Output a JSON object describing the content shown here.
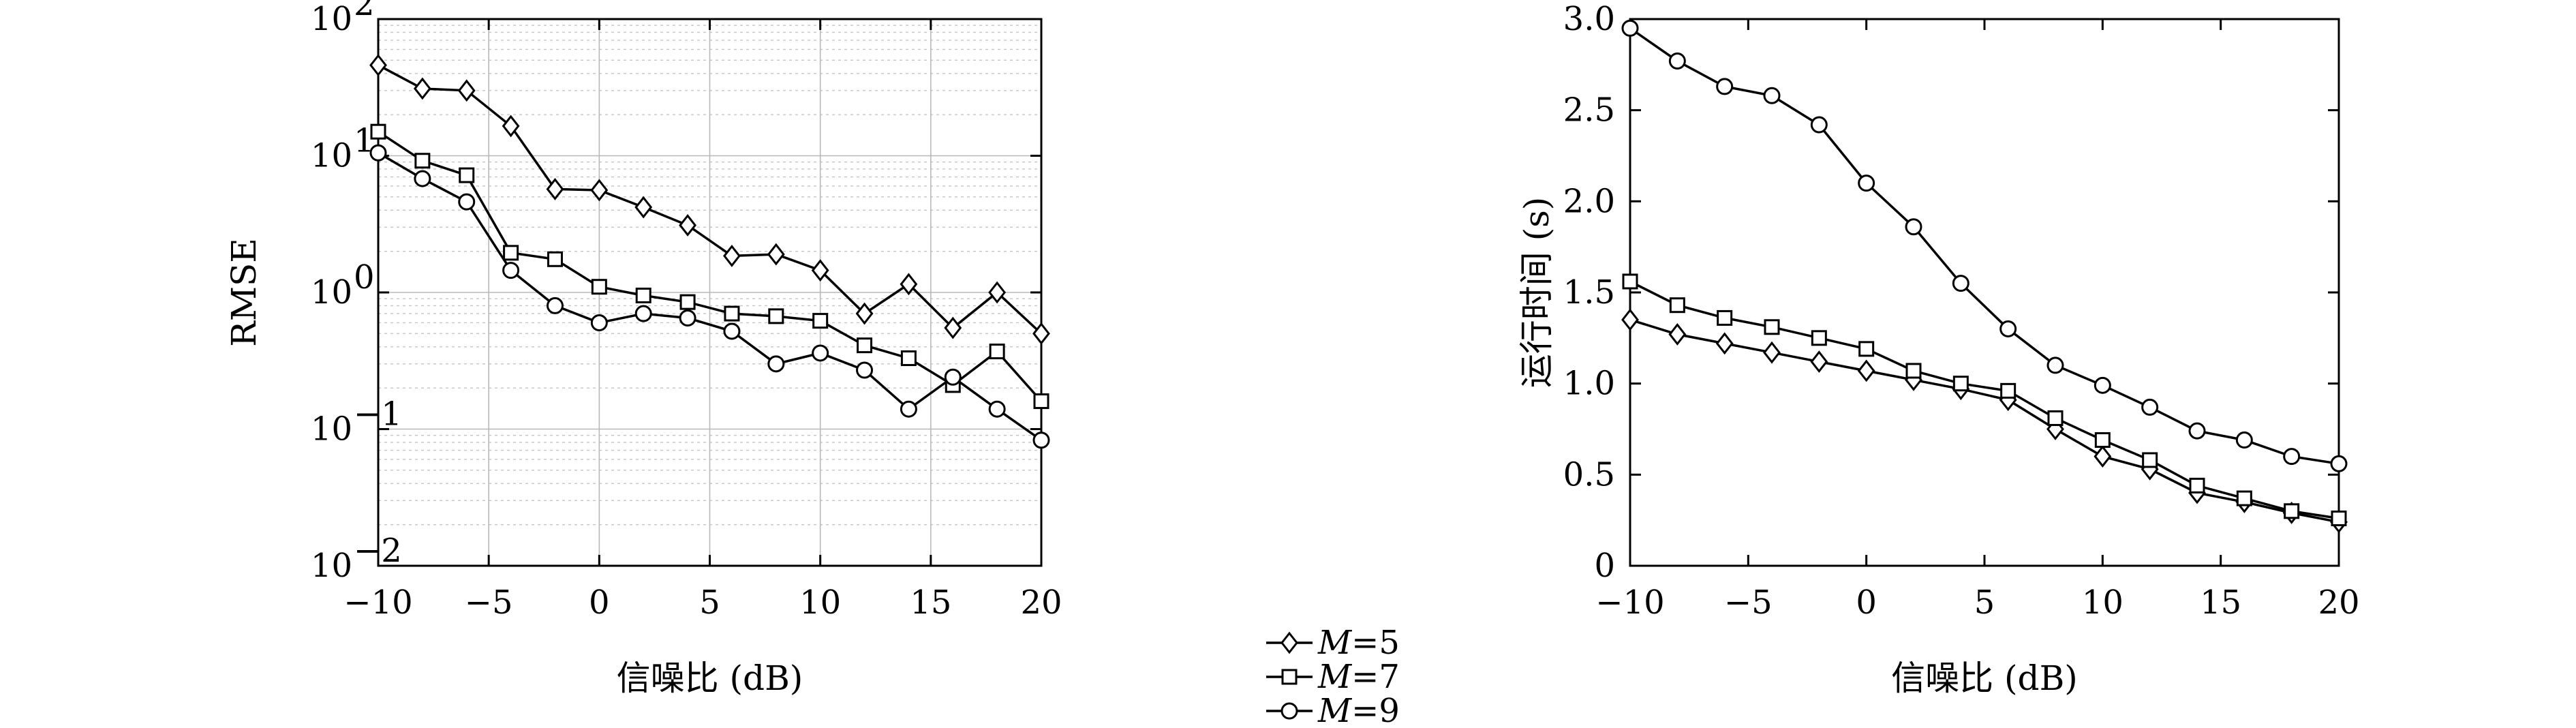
{
  "chart_data": [
    {
      "type": "line",
      "xlabel": "信噪比 (dB)",
      "ylabel": "RMSE",
      "yscale": "log",
      "xlim": [
        -10,
        20
      ],
      "ylim": [
        0.01,
        100
      ],
      "grid": true,
      "x": [
        -10,
        -8,
        -6,
        -4,
        -2,
        0,
        2,
        4,
        6,
        8,
        10,
        12,
        14,
        16,
        18,
        20
      ],
      "x_ticks": [
        -10,
        -5,
        0,
        5,
        10,
        15,
        20
      ],
      "x_tick_labels": [
        "−10",
        "−5",
        "0",
        "5",
        "10",
        "15",
        "20"
      ],
      "y_ticks": [
        {
          "value": 0.01,
          "base": "10",
          "exp": "−2"
        },
        {
          "value": 0.1,
          "base": "10",
          "exp": "−1"
        },
        {
          "value": 1,
          "base": "10",
          "exp": "0"
        },
        {
          "value": 10,
          "base": "10",
          "exp": "1"
        },
        {
          "value": 100,
          "base": "10",
          "exp": "2"
        }
      ],
      "series": [
        {
          "name": "M=5",
          "marker": "diamond",
          "values": [
            46,
            31,
            30,
            16.5,
            5.7,
            5.6,
            4.2,
            3.1,
            1.85,
            1.9,
            1.45,
            0.7,
            1.15,
            0.55,
            1.0,
            0.5
          ]
        },
        {
          "name": "M=7",
          "marker": "square",
          "values": [
            15,
            9.2,
            7.2,
            1.95,
            1.75,
            1.1,
            0.95,
            0.85,
            0.7,
            0.67,
            0.62,
            0.41,
            0.33,
            0.21,
            0.37,
            0.16
          ]
        },
        {
          "name": "M=9",
          "marker": "circle",
          "values": [
            10.5,
            6.8,
            4.6,
            1.45,
            0.8,
            0.6,
            0.7,
            0.65,
            0.52,
            0.3,
            0.36,
            0.27,
            0.14,
            0.24,
            0.14,
            0.083
          ]
        }
      ]
    },
    {
      "type": "line",
      "xlabel": "信噪比 (dB)",
      "ylabel": "运行时间 (s)",
      "yscale": "linear",
      "xlim": [
        -10,
        20
      ],
      "ylim": [
        0,
        3.0
      ],
      "grid": false,
      "x": [
        -10,
        -8,
        -6,
        -4,
        -2,
        0,
        2,
        4,
        6,
        8,
        10,
        12,
        14,
        16,
        18,
        20
      ],
      "x_ticks": [
        -10,
        -5,
        0,
        5,
        10,
        15,
        20
      ],
      "x_tick_labels": [
        "−10",
        "−5",
        "0",
        "5",
        "10",
        "15",
        "20"
      ],
      "y_ticks": [
        0,
        0.5,
        1.0,
        1.5,
        2.0,
        2.5,
        3.0
      ],
      "y_tick_labels": [
        "0",
        "0.5",
        "1.0",
        "1.5",
        "2.0",
        "2.5",
        "3.0"
      ],
      "series": [
        {
          "name": "M=5",
          "marker": "diamond",
          "values": [
            1.35,
            1.27,
            1.22,
            1.17,
            1.12,
            1.07,
            1.02,
            0.97,
            0.91,
            0.75,
            0.6,
            0.53,
            0.4,
            0.35,
            0.29,
            0.24
          ]
        },
        {
          "name": "M=7",
          "marker": "square",
          "values": [
            1.56,
            1.43,
            1.36,
            1.31,
            1.25,
            1.19,
            1.07,
            1.0,
            0.96,
            0.81,
            0.69,
            0.58,
            0.44,
            0.37,
            0.3,
            0.26
          ]
        },
        {
          "name": "M=9",
          "marker": "circle",
          "values": [
            2.95,
            2.77,
            2.63,
            2.58,
            2.42,
            2.1,
            1.86,
            1.55,
            1.3,
            1.1,
            0.99,
            0.87,
            0.74,
            0.69,
            0.6,
            0.56
          ]
        }
      ]
    }
  ],
  "legend": {
    "entries": [
      {
        "italic": "M",
        "rest": "=5",
        "marker": "diamond"
      },
      {
        "italic": "M",
        "rest": "=7",
        "marker": "square"
      },
      {
        "italic": "M",
        "rest": "=9",
        "marker": "circle"
      }
    ]
  }
}
